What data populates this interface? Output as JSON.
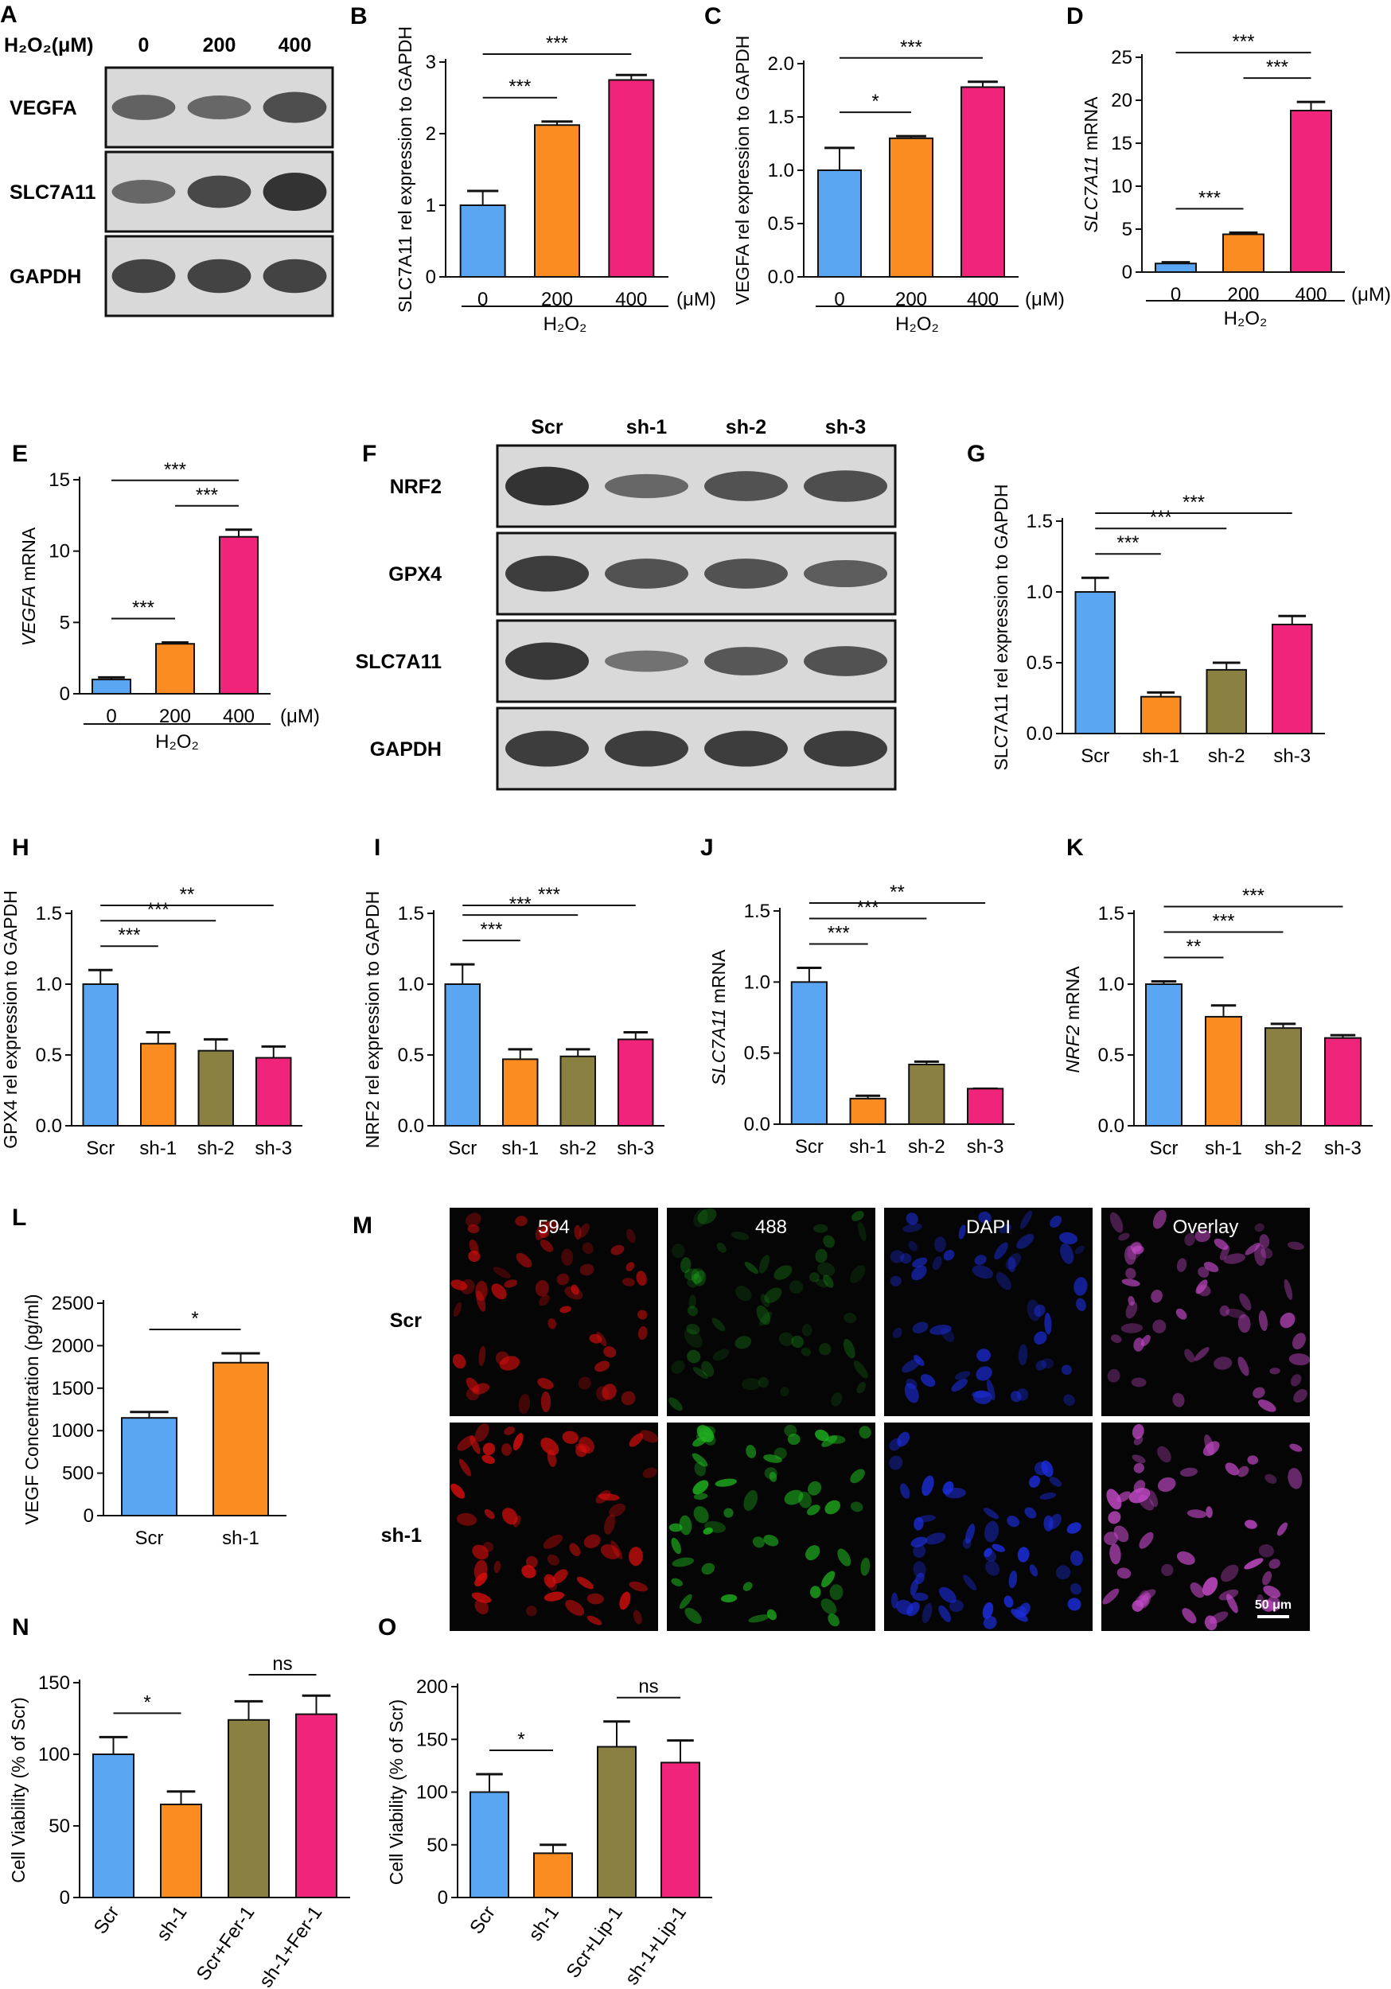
{
  "colors": {
    "blue": "#5aa6f2",
    "orange": "#fb8c22",
    "olive": "#8a8042",
    "pink": "#f0247a",
    "axis": "#111111",
    "blot_bg": "#d9d9d9",
    "band": "#2a2a2a"
  },
  "chart_data": [
    {
      "panel": "B",
      "type": "bar",
      "categories": [
        "0",
        "200",
        "400"
      ],
      "unit": "(μM)",
      "group_label": "H₂O₂",
      "ylabel": "SLC7A11 rel expression to GAPDH",
      "yticks": [
        0,
        1,
        2,
        3
      ],
      "ylim": [
        0,
        3
      ],
      "values": [
        1.0,
        2.12,
        2.75
      ],
      "errors": [
        0.2,
        0.05,
        0.07
      ],
      "sig": [
        {
          "from": 0,
          "to": 1,
          "label": "***"
        },
        {
          "from": 0,
          "to": 2,
          "label": "***"
        }
      ]
    },
    {
      "panel": "C",
      "type": "bar",
      "categories": [
        "0",
        "200",
        "400"
      ],
      "unit": "(μM)",
      "group_label": "H₂O₂",
      "ylabel": "VEGFA rel expression to GAPDH",
      "yticks": [
        "0.0",
        "0.5",
        "1.0",
        "1.5",
        "2.0"
      ],
      "ylim": [
        0,
        2.0
      ],
      "values": [
        1.0,
        1.3,
        1.78
      ],
      "errors": [
        0.21,
        0.02,
        0.05
      ],
      "sig": [
        {
          "from": 0,
          "to": 1,
          "label": "*"
        },
        {
          "from": 0,
          "to": 2,
          "label": "***"
        }
      ]
    },
    {
      "panel": "D",
      "type": "bar",
      "categories": [
        "0",
        "200",
        "400"
      ],
      "unit": "(μM)",
      "group_label": "H₂O₂",
      "ylabel": "SLC7A11 mRNA",
      "yticks": [
        0,
        5,
        10,
        15,
        20,
        25
      ],
      "ylim": [
        0,
        25
      ],
      "values": [
        1.0,
        4.4,
        18.8
      ],
      "errors": [
        0.15,
        0.2,
        1.0
      ],
      "sig": [
        {
          "from": 0,
          "to": 1,
          "label": "***"
        },
        {
          "from": 1,
          "to": 2,
          "label": "***"
        },
        {
          "from": 0,
          "to": 2,
          "label": "***"
        }
      ]
    },
    {
      "panel": "E",
      "type": "bar",
      "categories": [
        "0",
        "200",
        "400"
      ],
      "unit": "(μM)",
      "group_label": "H₂O₂",
      "ylabel": "VEGFA mRNA",
      "yticks": [
        0,
        5,
        10,
        15
      ],
      "ylim": [
        0,
        15
      ],
      "values": [
        1.0,
        3.5,
        11.0
      ],
      "errors": [
        0.15,
        0.1,
        0.5
      ],
      "sig": [
        {
          "from": 0,
          "to": 1,
          "label": "***"
        },
        {
          "from": 1,
          "to": 2,
          "label": "***"
        },
        {
          "from": 0,
          "to": 2,
          "label": "***"
        }
      ]
    },
    {
      "panel": "G",
      "type": "bar",
      "categories": [
        "Scr",
        "sh-1",
        "sh-2",
        "sh-3"
      ],
      "ylabel": "SLC7A11 rel expression to GAPDH",
      "yticks": [
        "0.0",
        "0.5",
        "1.0",
        "1.5"
      ],
      "ylim": [
        0,
        1.5
      ],
      "values": [
        1.0,
        0.26,
        0.45,
        0.77
      ],
      "errors": [
        0.1,
        0.03,
        0.05,
        0.06
      ],
      "sig": [
        {
          "from": 0,
          "to": 1,
          "label": "***"
        },
        {
          "from": 0,
          "to": 2,
          "label": "***"
        },
        {
          "from": 0,
          "to": 3,
          "label": "***"
        }
      ]
    },
    {
      "panel": "H",
      "type": "bar",
      "categories": [
        "Scr",
        "sh-1",
        "sh-2",
        "sh-3"
      ],
      "ylabel": "GPX4 rel expression to GAPDH",
      "yticks": [
        "0.0",
        "0.5",
        "1.0",
        "1.5"
      ],
      "ylim": [
        0,
        1.5
      ],
      "values": [
        1.0,
        0.58,
        0.53,
        0.48
      ],
      "errors": [
        0.1,
        0.08,
        0.08,
        0.08
      ],
      "sig": [
        {
          "from": 0,
          "to": 1,
          "label": "***"
        },
        {
          "from": 0,
          "to": 2,
          "label": "***"
        },
        {
          "from": 0,
          "to": 3,
          "label": "**"
        }
      ]
    },
    {
      "panel": "I",
      "type": "bar",
      "categories": [
        "Scr",
        "sh-1",
        "sh-2",
        "sh-3"
      ],
      "ylabel": "NRF2 rel expression to GAPDH",
      "yticks": [
        "0.0",
        "0.5",
        "1.0",
        "1.5"
      ],
      "ylim": [
        0,
        1.5
      ],
      "values": [
        1.0,
        0.47,
        0.49,
        0.61
      ],
      "errors": [
        0.14,
        0.07,
        0.05,
        0.05
      ],
      "sig": [
        {
          "from": 0,
          "to": 1,
          "label": "***"
        },
        {
          "from": 0,
          "to": 2,
          "label": "***"
        },
        {
          "from": 0,
          "to": 3,
          "label": "***"
        }
      ]
    },
    {
      "panel": "J",
      "type": "bar",
      "categories": [
        "Scr",
        "sh-1",
        "sh-2",
        "sh-3"
      ],
      "ylabel": "SLC7A11 mRNA",
      "yticks": [
        "0.0",
        "0.5",
        "1.0",
        "1.5"
      ],
      "ylim": [
        0,
        1.5
      ],
      "values": [
        1.0,
        0.18,
        0.42,
        0.25
      ],
      "errors": [
        0.1,
        0.02,
        0.02,
        0.0
      ],
      "sig": [
        {
          "from": 0,
          "to": 1,
          "label": "***"
        },
        {
          "from": 0,
          "to": 2,
          "label": "***"
        },
        {
          "from": 0,
          "to": 3,
          "label": "**"
        }
      ]
    },
    {
      "panel": "K",
      "type": "bar",
      "categories": [
        "Scr",
        "sh-1",
        "sh-2",
        "sh-3"
      ],
      "ylabel": "NRF2 mRNA",
      "yticks": [
        "0.0",
        "0.5",
        "1.0",
        "1.5"
      ],
      "ylim": [
        0,
        1.5
      ],
      "values": [
        1.0,
        0.77,
        0.69,
        0.62
      ],
      "errors": [
        0.02,
        0.08,
        0.03,
        0.02
      ],
      "sig": [
        {
          "from": 0,
          "to": 1,
          "label": "**"
        },
        {
          "from": 0,
          "to": 2,
          "label": "***"
        },
        {
          "from": 0,
          "to": 3,
          "label": "***"
        }
      ]
    },
    {
      "panel": "L",
      "type": "bar",
      "categories": [
        "Scr",
        "sh-1"
      ],
      "ylabel": "VEGF Concentration (pg/ml)",
      "yticks": [
        0,
        500,
        1000,
        1500,
        2000,
        2500
      ],
      "ylim": [
        0,
        2500
      ],
      "values": [
        1150,
        1800
      ],
      "errors": [
        70,
        110
      ],
      "sig": [
        {
          "from": 0,
          "to": 1,
          "label": "*"
        }
      ]
    },
    {
      "panel": "N",
      "type": "bar",
      "categories": [
        "Scr",
        "sh-1",
        "Scr+Fer-1",
        "sh-1+Fer-1"
      ],
      "ylabel": "Cell Viability (% of Scr)",
      "yticks": [
        0,
        50,
        100,
        150
      ],
      "ylim": [
        0,
        150
      ],
      "values": [
        100,
        65,
        124,
        128
      ],
      "errors": [
        12,
        9,
        13,
        13
      ],
      "sig": [
        {
          "from": 0,
          "to": 1,
          "label": "*"
        },
        {
          "from": 2,
          "to": 3,
          "label": "ns"
        }
      ]
    },
    {
      "panel": "O",
      "type": "bar",
      "categories": [
        "Scr",
        "sh-1",
        "Scr+Lip-1",
        "sh-1+Lip-1"
      ],
      "ylabel": "Cell Viability (% of Scr)",
      "yticks": [
        0,
        50,
        100,
        150,
        200
      ],
      "ylim": [
        0,
        200
      ],
      "values": [
        100,
        42,
        143,
        128
      ],
      "errors": [
        17,
        8,
        24,
        21
      ],
      "sig": [
        {
          "from": 0,
          "to": 1,
          "label": "*"
        },
        {
          "from": 2,
          "to": 3,
          "label": "ns"
        }
      ]
    }
  ],
  "blots": [
    {
      "panel": "A",
      "header_label": "H₂O₂(μM)",
      "lanes": [
        "0",
        "200",
        "400"
      ],
      "rows": [
        {
          "label": "VEGFA",
          "intensity": [
            0.55,
            0.5,
            0.75
          ]
        },
        {
          "label": "SLC7A11",
          "intensity": [
            0.5,
            0.8,
            1.0
          ]
        },
        {
          "label": "GAPDH",
          "intensity": [
            0.85,
            0.85,
            0.85
          ]
        }
      ]
    },
    {
      "panel": "F",
      "lanes": [
        "Scr",
        "sh-1",
        "sh-2",
        "sh-3"
      ],
      "rows": [
        {
          "label": "NRF2",
          "intensity": [
            1.0,
            0.5,
            0.7,
            0.75
          ]
        },
        {
          "label": "GPX4",
          "intensity": [
            0.9,
            0.7,
            0.7,
            0.6
          ]
        },
        {
          "label": "SLC7A11",
          "intensity": [
            0.95,
            0.4,
            0.65,
            0.7
          ]
        },
        {
          "label": "GAPDH",
          "intensity": [
            0.9,
            0.9,
            0.9,
            0.9
          ]
        }
      ]
    }
  ],
  "micrographs": {
    "panel": "M",
    "columns": [
      "594",
      "488",
      "DAPI",
      "Overlay"
    ],
    "rows": [
      "Scr",
      "sh-1"
    ],
    "scale_bar": "50 μm",
    "column_colors": [
      "#d40d0d",
      "#1fb21f",
      "#1c2ee0",
      "#c54ac9"
    ]
  }
}
